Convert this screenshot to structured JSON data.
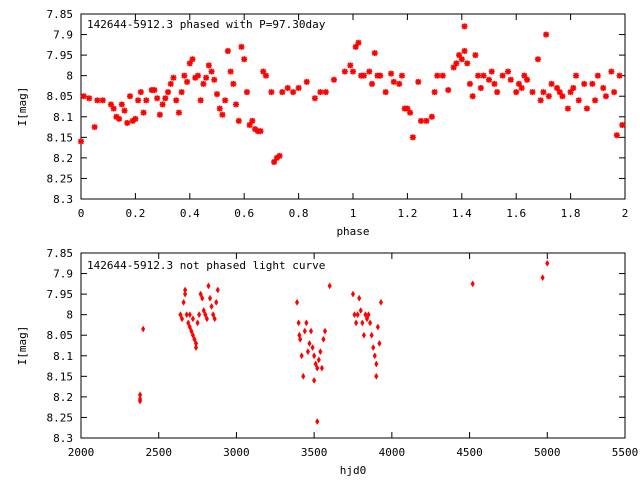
{
  "chart_data": [
    {
      "type": "scatter",
      "title": "142644-5912.3 phased with P=97.30day",
      "xlabel": "phase",
      "ylabel": "I[mag]",
      "xlim": [
        0,
        2
      ],
      "ylim": [
        8.3,
        7.85
      ],
      "y_inverted": true,
      "grid": false,
      "marker_color": "#ff0000",
      "x_ticks": [
        "0",
        "0.2",
        "0.4",
        "0.6",
        "0.8",
        "1",
        "1.2",
        "1.4",
        "1.6",
        "1.8",
        "2"
      ],
      "y_ticks": [
        "7.85",
        "7.9",
        "7.95",
        "8",
        "8.05",
        "8.1",
        "8.15",
        "8.2",
        "8.25",
        "8.3"
      ],
      "points": [
        [
          0.0,
          8.16
        ],
        [
          0.01,
          8.05
        ],
        [
          0.03,
          8.055
        ],
        [
          0.05,
          8.125
        ],
        [
          0.06,
          8.06
        ],
        [
          0.08,
          8.06
        ],
        [
          0.11,
          8.07
        ],
        [
          0.12,
          8.08
        ],
        [
          0.13,
          8.1
        ],
        [
          0.14,
          8.105
        ],
        [
          0.15,
          8.07
        ],
        [
          0.16,
          8.085
        ],
        [
          0.17,
          8.115
        ],
        [
          0.18,
          8.05
        ],
        [
          0.19,
          8.11
        ],
        [
          0.2,
          8.105
        ],
        [
          0.21,
          8.06
        ],
        [
          0.22,
          8.04
        ],
        [
          0.23,
          8.09
        ],
        [
          0.24,
          8.06
        ],
        [
          0.26,
          8.035
        ],
        [
          0.27,
          8.035
        ],
        [
          0.28,
          8.055
        ],
        [
          0.29,
          8.095
        ],
        [
          0.3,
          8.07
        ],
        [
          0.31,
          8.055
        ],
        [
          0.32,
          8.04
        ],
        [
          0.33,
          8.02
        ],
        [
          0.34,
          8.005
        ],
        [
          0.35,
          8.06
        ],
        [
          0.36,
          8.09
        ],
        [
          0.37,
          8.04
        ],
        [
          0.38,
          8.0
        ],
        [
          0.39,
          8.015
        ],
        [
          0.4,
          7.97
        ],
        [
          0.41,
          7.96
        ],
        [
          0.42,
          8.005
        ],
        [
          0.43,
          8.0
        ],
        [
          0.44,
          8.06
        ],
        [
          0.45,
          8.02
        ],
        [
          0.46,
          8.005
        ],
        [
          0.47,
          7.975
        ],
        [
          0.48,
          7.99
        ],
        [
          0.49,
          8.01
        ],
        [
          0.5,
          8.045
        ],
        [
          0.51,
          8.08
        ],
        [
          0.52,
          8.095
        ],
        [
          0.53,
          8.06
        ],
        [
          0.54,
          7.94
        ],
        [
          0.55,
          7.99
        ],
        [
          0.56,
          8.02
        ],
        [
          0.57,
          8.07
        ],
        [
          0.58,
          8.11
        ],
        [
          0.59,
          7.93
        ],
        [
          0.6,
          7.96
        ],
        [
          0.61,
          8.04
        ],
        [
          0.62,
          8.12
        ],
        [
          0.63,
          8.11
        ],
        [
          0.64,
          8.13
        ],
        [
          0.65,
          8.135
        ],
        [
          0.66,
          8.135
        ],
        [
          0.67,
          7.99
        ],
        [
          0.68,
          8.0
        ],
        [
          0.7,
          8.04
        ],
        [
          0.71,
          8.21
        ],
        [
          0.72,
          8.2
        ],
        [
          0.73,
          8.195
        ],
        [
          0.74,
          8.04
        ],
        [
          0.76,
          8.03
        ],
        [
          0.78,
          8.04
        ],
        [
          0.8,
          8.03
        ],
        [
          0.83,
          8.015
        ],
        [
          0.86,
          8.055
        ],
        [
          0.88,
          8.04
        ],
        [
          0.9,
          8.04
        ],
        [
          0.93,
          8.01
        ],
        [
          0.97,
          7.99
        ],
        [
          0.99,
          7.975
        ],
        [
          1.0,
          7.99
        ],
        [
          1.01,
          7.93
        ],
        [
          1.02,
          7.92
        ],
        [
          1.03,
          8.0
        ],
        [
          1.04,
          8.0
        ],
        [
          1.06,
          7.99
        ],
        [
          1.07,
          8.02
        ],
        [
          1.08,
          7.945
        ],
        [
          1.09,
          8.0
        ],
        [
          1.1,
          8.0
        ],
        [
          1.12,
          8.04
        ],
        [
          1.14,
          7.995
        ],
        [
          1.15,
          8.015
        ],
        [
          1.17,
          8.02
        ],
        [
          1.18,
          8.0
        ],
        [
          1.19,
          8.08
        ],
        [
          1.2,
          8.08
        ],
        [
          1.21,
          8.09
        ],
        [
          1.22,
          8.15
        ],
        [
          1.24,
          8.015
        ],
        [
          1.25,
          8.11
        ],
        [
          1.27,
          8.11
        ],
        [
          1.29,
          8.1
        ],
        [
          1.3,
          8.04
        ],
        [
          1.31,
          8.0
        ],
        [
          1.33,
          8.0
        ],
        [
          1.35,
          8.035
        ],
        [
          1.37,
          7.98
        ],
        [
          1.38,
          7.97
        ],
        [
          1.39,
          7.95
        ],
        [
          1.4,
          7.96
        ],
        [
          1.41,
          7.94
        ],
        [
          1.41,
          7.88
        ],
        [
          1.42,
          7.97
        ],
        [
          1.43,
          8.02
        ],
        [
          1.44,
          8.05
        ],
        [
          1.45,
          7.95
        ],
        [
          1.46,
          8.0
        ],
        [
          1.47,
          8.03
        ],
        [
          1.48,
          8.0
        ],
        [
          1.5,
          8.01
        ],
        [
          1.51,
          7.99
        ],
        [
          1.52,
          8.02
        ],
        [
          1.53,
          8.04
        ],
        [
          1.55,
          8.0
        ],
        [
          1.57,
          7.99
        ],
        [
          1.58,
          8.01
        ],
        [
          1.6,
          8.04
        ],
        [
          1.61,
          8.02
        ],
        [
          1.62,
          8.03
        ],
        [
          1.63,
          8.0
        ],
        [
          1.64,
          8.01
        ],
        [
          1.66,
          8.04
        ],
        [
          1.68,
          7.96
        ],
        [
          1.69,
          8.06
        ],
        [
          1.7,
          8.04
        ],
        [
          1.71,
          7.9
        ],
        [
          1.72,
          8.05
        ],
        [
          1.73,
          8.02
        ],
        [
          1.75,
          8.03
        ],
        [
          1.76,
          8.04
        ],
        [
          1.77,
          8.05
        ],
        [
          1.79,
          8.08
        ],
        [
          1.8,
          8.04
        ],
        [
          1.81,
          8.03
        ],
        [
          1.82,
          8.0
        ],
        [
          1.83,
          8.06
        ],
        [
          1.85,
          8.02
        ],
        [
          1.86,
          8.08
        ],
        [
          1.88,
          8.02
        ],
        [
          1.89,
          8.06
        ],
        [
          1.9,
          8.0
        ],
        [
          1.92,
          8.03
        ],
        [
          1.93,
          8.05
        ],
        [
          1.95,
          7.99
        ],
        [
          1.96,
          8.04
        ],
        [
          1.97,
          8.145
        ],
        [
          1.98,
          8.0
        ],
        [
          1.99,
          8.12
        ]
      ]
    },
    {
      "type": "scatter",
      "title": "142644-5912.3 not phased light curve",
      "xlabel": "hjd0",
      "ylabel": "I[mag]",
      "xlim": [
        2000,
        5500
      ],
      "ylim": [
        8.3,
        7.85
      ],
      "y_inverted": true,
      "grid": false,
      "marker_color": "#ff0000",
      "x_ticks": [
        "2000",
        "2500",
        "3000",
        "3500",
        "4000",
        "4500",
        "5000",
        "5500"
      ],
      "y_ticks": [
        "7.85",
        "7.9",
        "7.95",
        "8",
        "8.05",
        "8.1",
        "8.15",
        "8.2",
        "8.25",
        "8.3"
      ],
      "points": [
        [
          2380,
          8.195
        ],
        [
          2380,
          8.205
        ],
        [
          2380,
          8.21
        ],
        [
          2400,
          8.035
        ],
        [
          2640,
          8.0
        ],
        [
          2650,
          8.01
        ],
        [
          2660,
          7.97
        ],
        [
          2670,
          7.94
        ],
        [
          2670,
          7.95
        ],
        [
          2680,
          8.0
        ],
        [
          2690,
          8.02
        ],
        [
          2700,
          8.0
        ],
        [
          2700,
          8.03
        ],
        [
          2710,
          8.04
        ],
        [
          2720,
          8.01
        ],
        [
          2720,
          8.05
        ],
        [
          2730,
          8.06
        ],
        [
          2740,
          8.07
        ],
        [
          2740,
          8.08
        ],
        [
          2750,
          8.02
        ],
        [
          2760,
          8.0
        ],
        [
          2770,
          7.95
        ],
        [
          2780,
          7.96
        ],
        [
          2790,
          7.99
        ],
        [
          2800,
          8.0
        ],
        [
          2810,
          8.01
        ],
        [
          2820,
          7.93
        ],
        [
          2830,
          7.96
        ],
        [
          2840,
          7.98
        ],
        [
          2850,
          8.0
        ],
        [
          2860,
          8.01
        ],
        [
          2870,
          7.97
        ],
        [
          2880,
          7.94
        ],
        [
          3390,
          7.97
        ],
        [
          3400,
          8.02
        ],
        [
          3405,
          8.05
        ],
        [
          3410,
          8.06
        ],
        [
          3420,
          8.1
        ],
        [
          3430,
          8.15
        ],
        [
          3440,
          8.04
        ],
        [
          3450,
          8.02
        ],
        [
          3460,
          8.09
        ],
        [
          3470,
          8.07
        ],
        [
          3480,
          8.04
        ],
        [
          3490,
          8.08
        ],
        [
          3500,
          8.1
        ],
        [
          3500,
          8.16
        ],
        [
          3510,
          8.12
        ],
        [
          3520,
          8.13
        ],
        [
          3520,
          8.26
        ],
        [
          3530,
          8.11
        ],
        [
          3540,
          8.09
        ],
        [
          3550,
          8.13
        ],
        [
          3560,
          8.06
        ],
        [
          3570,
          8.04
        ],
        [
          3600,
          7.93
        ],
        [
          3750,
          7.95
        ],
        [
          3760,
          8.0
        ],
        [
          3770,
          8.02
        ],
        [
          3780,
          8.0
        ],
        [
          3790,
          7.96
        ],
        [
          3800,
          7.99
        ],
        [
          3810,
          8.02
        ],
        [
          3820,
          8.05
        ],
        [
          3830,
          8.0
        ],
        [
          3840,
          8.01
        ],
        [
          3850,
          8.0
        ],
        [
          3860,
          8.02
        ],
        [
          3870,
          8.05
        ],
        [
          3880,
          8.08
        ],
        [
          3890,
          8.1
        ],
        [
          3900,
          8.12
        ],
        [
          3900,
          8.15
        ],
        [
          3910,
          8.03
        ],
        [
          3920,
          8.07
        ],
        [
          3930,
          7.97
        ],
        [
          4520,
          7.925
        ],
        [
          4970,
          7.91
        ],
        [
          5000,
          7.875
        ]
      ]
    }
  ]
}
